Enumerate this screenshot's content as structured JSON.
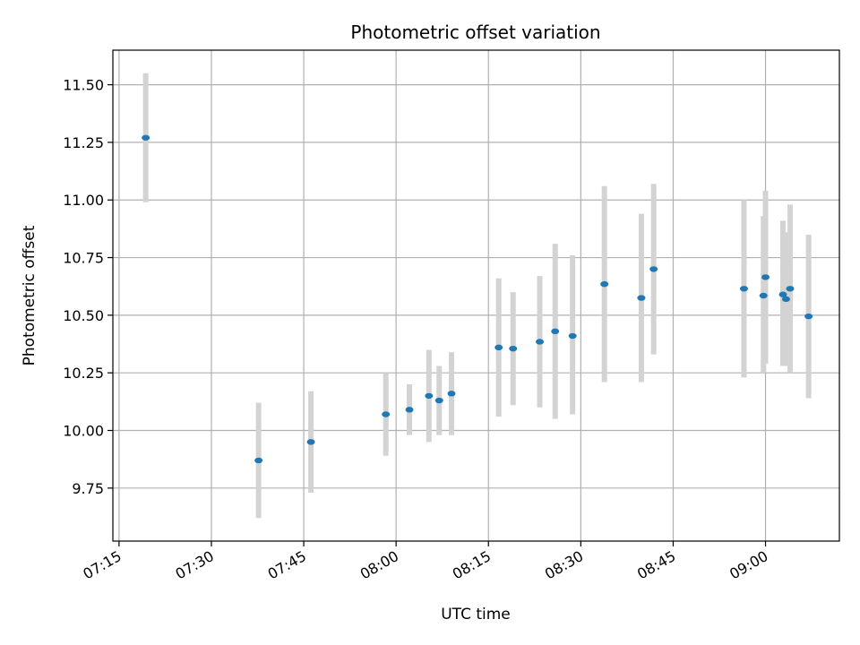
{
  "chart_data": {
    "type": "scatter",
    "title": "Photometric offset variation",
    "xlabel": "UTC time",
    "ylabel": "Photometric offset",
    "xlim": [
      "07:14",
      "09:12"
    ],
    "ylim": [
      9.52,
      11.65
    ],
    "grid": true,
    "x_ticks": [
      "07:15",
      "07:30",
      "07:45",
      "08:00",
      "08:15",
      "08:30",
      "08:45",
      "09:00"
    ],
    "y_ticks": [
      9.75,
      10.0,
      10.25,
      10.5,
      10.75,
      11.0,
      11.25,
      11.5
    ],
    "y_tick_labels": [
      "9.75",
      "10.00",
      "10.25",
      "10.50",
      "10.75",
      "11.00",
      "11.25",
      "11.50"
    ],
    "colors": {
      "point": "#1f77b4",
      "errorbar": "#d3d3d3",
      "grid": "#b0b0b0"
    },
    "points": [
      {
        "x": "07:19:20",
        "y": 11.27,
        "yerr_low": 10.99,
        "yerr_high": 11.55
      },
      {
        "x": "07:37:40",
        "y": 9.87,
        "yerr_low": 9.62,
        "yerr_high": 10.12
      },
      {
        "x": "07:46:10",
        "y": 9.95,
        "yerr_low": 9.73,
        "yerr_high": 10.17
      },
      {
        "x": "07:58:20",
        "y": 10.07,
        "yerr_low": 9.89,
        "yerr_high": 10.25
      },
      {
        "x": "08:02:10",
        "y": 10.09,
        "yerr_low": 9.98,
        "yerr_high": 10.2
      },
      {
        "x": "08:05:20",
        "y": 10.15,
        "yerr_low": 9.95,
        "yerr_high": 10.35
      },
      {
        "x": "08:07:00",
        "y": 10.13,
        "yerr_low": 9.98,
        "yerr_high": 10.28
      },
      {
        "x": "08:09:00",
        "y": 10.16,
        "yerr_low": 9.98,
        "yerr_high": 10.34
      },
      {
        "x": "08:16:40",
        "y": 10.36,
        "yerr_low": 10.06,
        "yerr_high": 10.66
      },
      {
        "x": "08:19:00",
        "y": 10.355,
        "yerr_low": 10.11,
        "yerr_high": 10.6
      },
      {
        "x": "08:23:20",
        "y": 10.385,
        "yerr_low": 10.1,
        "yerr_high": 10.67
      },
      {
        "x": "08:25:50",
        "y": 10.43,
        "yerr_low": 10.05,
        "yerr_high": 10.81
      },
      {
        "x": "08:28:40",
        "y": 10.41,
        "yerr_low": 10.07,
        "yerr_high": 10.76
      },
      {
        "x": "08:33:50",
        "y": 10.635,
        "yerr_low": 10.21,
        "yerr_high": 11.06
      },
      {
        "x": "08:39:50",
        "y": 10.575,
        "yerr_low": 10.21,
        "yerr_high": 10.94
      },
      {
        "x": "08:41:50",
        "y": 10.7,
        "yerr_low": 10.33,
        "yerr_high": 11.07
      },
      {
        "x": "08:56:30",
        "y": 10.615,
        "yerr_low": 10.23,
        "yerr_high": 11.0
      },
      {
        "x": "08:59:40",
        "y": 10.585,
        "yerr_low": 10.25,
        "yerr_high": 10.93
      },
      {
        "x": "09:00:00",
        "y": 10.665,
        "yerr_low": 10.29,
        "yerr_high": 11.04
      },
      {
        "x": "09:02:50",
        "y": 10.59,
        "yerr_low": 10.28,
        "yerr_high": 10.91
      },
      {
        "x": "09:03:20",
        "y": 10.57,
        "yerr_low": 10.28,
        "yerr_high": 10.86
      },
      {
        "x": "09:04:00",
        "y": 10.615,
        "yerr_low": 10.25,
        "yerr_high": 10.98
      },
      {
        "x": "09:07:00",
        "y": 10.495,
        "yerr_low": 10.14,
        "yerr_high": 10.85
      }
    ]
  }
}
